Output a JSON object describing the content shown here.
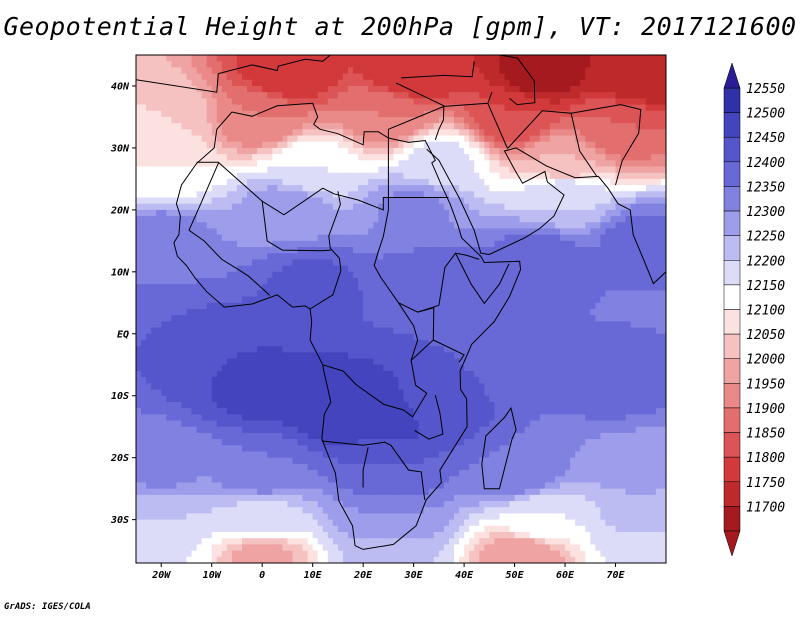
{
  "title": "Geopotential Height at 200hPa [gpm], VT: 2017121600",
  "credit": "GrADS: IGES/COLA",
  "map": {
    "variable": "Geopotential Height",
    "level": "200hPa",
    "units": "gpm",
    "valid_time": "2017121600",
    "lon_range": [
      -25,
      80
    ],
    "lat_range": [
      -37,
      45
    ],
    "lon_ticks": [
      {
        "value": -20,
        "label": "20W"
      },
      {
        "value": -10,
        "label": "10W"
      },
      {
        "value": 0,
        "label": "0"
      },
      {
        "value": 10,
        "label": "10E"
      },
      {
        "value": 20,
        "label": "20E"
      },
      {
        "value": 30,
        "label": "30E"
      },
      {
        "value": 40,
        "label": "40E"
      },
      {
        "value": 50,
        "label": "50E"
      },
      {
        "value": 60,
        "label": "60E"
      },
      {
        "value": 70,
        "label": "70E"
      }
    ],
    "lat_ticks": [
      {
        "value": 40,
        "label": "40N"
      },
      {
        "value": 30,
        "label": "30N"
      },
      {
        "value": 20,
        "label": "20N"
      },
      {
        "value": 10,
        "label": "10N"
      },
      {
        "value": 0,
        "label": "EQ"
      },
      {
        "value": -10,
        "label": "10S"
      },
      {
        "value": -20,
        "label": "20S"
      },
      {
        "value": -30,
        "label": "30S"
      }
    ]
  },
  "colorbar": {
    "levels": [
      {
        "label": "11700",
        "color": "#a41a1e"
      },
      {
        "label": "11750",
        "color": "#be2a2c"
      },
      {
        "label": "11800",
        "color": "#d2393b"
      },
      {
        "label": "11850",
        "color": "#dc5455"
      },
      {
        "label": "11900",
        "color": "#e26e6e"
      },
      {
        "label": "11950",
        "color": "#e98a89"
      },
      {
        "label": "12000",
        "color": "#efa4a3"
      },
      {
        "label": "12050",
        "color": "#f5c2c1"
      },
      {
        "label": "12100",
        "color": "#fbe2e1"
      },
      {
        "label": "12150",
        "color": "#ffffff"
      },
      {
        "label": "12200",
        "color": "#dcdcf8"
      },
      {
        "label": "12250",
        "color": "#bcbcf2"
      },
      {
        "label": "12300",
        "color": "#9d9deb"
      },
      {
        "label": "12350",
        "color": "#8181e1"
      },
      {
        "label": "12400",
        "color": "#6868d6"
      },
      {
        "label": "12450",
        "color": "#5656cc"
      },
      {
        "label": "12500",
        "color": "#4444bf"
      },
      {
        "label": "12550",
        "color": "#3030a8"
      }
    ],
    "top_color": "#2a1e96",
    "bottom_color": "#a41a1e"
  },
  "fields": [
    {
      "lon": -5,
      "lat": -4,
      "value": 12500
    },
    {
      "lon": 0,
      "lat": -9,
      "value": 12520
    },
    {
      "lon": 15,
      "lat": -12,
      "value": 12550
    },
    {
      "lon": 25,
      "lat": -14,
      "value": 12520
    },
    {
      "lon": 35,
      "lat": -12,
      "value": 12480
    },
    {
      "lon": 55,
      "lat": -6,
      "value": 12400
    },
    {
      "lon": 70,
      "lat": -8,
      "value": 12420
    },
    {
      "lon": -20,
      "lat": 0,
      "value": 12450
    },
    {
      "lon": 10,
      "lat": 8,
      "value": 12460
    },
    {
      "lon": 35,
      "lat": 8,
      "value": 12450
    },
    {
      "lon": 55,
      "lat": 12,
      "value": 12430
    },
    {
      "lon": 75,
      "lat": 15,
      "value": 12420
    },
    {
      "lon": -20,
      "lat": 15,
      "value": 12380
    },
    {
      "lon": 5,
      "lat": 20,
      "value": 12330
    },
    {
      "lon": 30,
      "lat": 20,
      "value": 12360
    },
    {
      "lon": 60,
      "lat": 22,
      "value": 12250
    },
    {
      "lon": -20,
      "lat": 27,
      "value": 12150
    },
    {
      "lon": 10,
      "lat": 27,
      "value": 12200
    },
    {
      "lon": 35,
      "lat": 28,
      "value": 12220
    },
    {
      "lon": 60,
      "lat": 28,
      "value": 12050
    },
    {
      "lon": -20,
      "lat": 35,
      "value": 12100
    },
    {
      "lon": 0,
      "lat": 35,
      "value": 11950
    },
    {
      "lon": 25,
      "lat": 35,
      "value": 11950
    },
    {
      "lon": 50,
      "lat": 35,
      "value": 11850
    },
    {
      "lon": 70,
      "lat": 33,
      "value": 11900
    },
    {
      "lon": 5,
      "lat": 42,
      "value": 11800
    },
    {
      "lon": 30,
      "lat": 42,
      "value": 11800
    },
    {
      "lon": 55,
      "lat": 42,
      "value": 11720
    },
    {
      "lon": 75,
      "lat": 42,
      "value": 11750
    },
    {
      "lon": -20,
      "lat": -22,
      "value": 12360
    },
    {
      "lon": 0,
      "lat": -22,
      "value": 12400
    },
    {
      "lon": 25,
      "lat": -22,
      "value": 12450
    },
    {
      "lon": 50,
      "lat": -22,
      "value": 12400
    },
    {
      "lon": 75,
      "lat": -22,
      "value": 12320
    },
    {
      "lon": -20,
      "lat": -30,
      "value": 12250
    },
    {
      "lon": 0,
      "lat": -30,
      "value": 12230
    },
    {
      "lon": 25,
      "lat": -30,
      "value": 12350
    },
    {
      "lon": 55,
      "lat": -30,
      "value": 12200
    },
    {
      "lon": 75,
      "lat": -30,
      "value": 12260
    },
    {
      "lon": -20,
      "lat": -36,
      "value": 12200
    },
    {
      "lon": 0,
      "lat": -36,
      "value": 12030
    },
    {
      "lon": 25,
      "lat": -36,
      "value": 12250
    },
    {
      "lon": 52,
      "lat": -36,
      "value": 12000
    },
    {
      "lon": 75,
      "lat": -36,
      "value": 12200
    }
  ]
}
